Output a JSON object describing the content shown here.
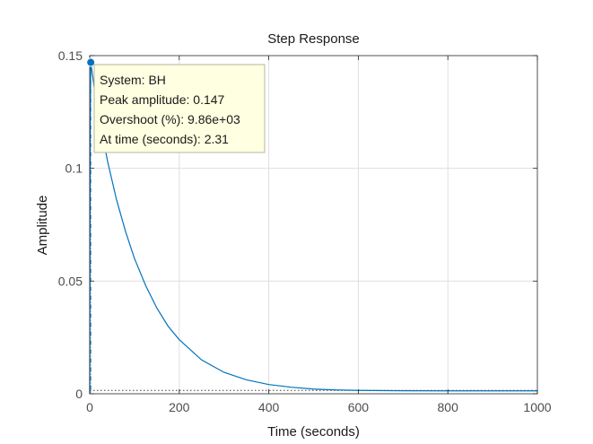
{
  "chart_data": {
    "type": "line",
    "title": "Step Response",
    "xlabel": "Time (seconds)",
    "ylabel": "Amplitude",
    "xlim": [
      0,
      1000
    ],
    "ylim": [
      0,
      0.15
    ],
    "xticks": [
      0,
      200,
      400,
      600,
      800,
      1000
    ],
    "yticks": [
      0,
      0.05,
      0.1,
      0.15
    ],
    "xtick_labels": [
      "0",
      "200",
      "400",
      "600",
      "800",
      "1000"
    ],
    "ytick_labels": [
      "0",
      "0.05",
      "0.1",
      "0.15"
    ],
    "grid": true,
    "series": [
      {
        "name": "BH",
        "color": "#0072bd",
        "x": [
          0,
          0.5,
          1,
          2.31,
          10,
          20,
          40,
          60,
          80,
          100,
          125,
          150,
          175,
          200,
          250,
          300,
          350,
          400,
          450,
          500,
          550,
          600,
          700,
          800,
          900,
          1000
        ],
        "y": [
          0,
          0.06,
          0.12,
          0.147,
          0.136,
          0.124,
          0.103,
          0.086,
          0.072,
          0.06,
          0.048,
          0.038,
          0.03,
          0.024,
          0.015,
          0.0095,
          0.0062,
          0.0041,
          0.0029,
          0.0021,
          0.0017,
          0.0015,
          0.00135,
          0.0013,
          0.0013,
          0.0013
        ]
      }
    ],
    "steady_state": {
      "value": 0.0015,
      "line_style": "dotted",
      "color": "#404040"
    },
    "annotations": [
      {
        "type": "peak",
        "x": 2.31,
        "y": 0.147,
        "marker_color": "#0072bd",
        "guide_style": "dash-dot",
        "datatip": [
          "System: BH",
          "Peak amplitude: 0.147",
          "Overshoot (%): 9.86e+03",
          "At time (seconds): 2.31"
        ]
      }
    ]
  }
}
